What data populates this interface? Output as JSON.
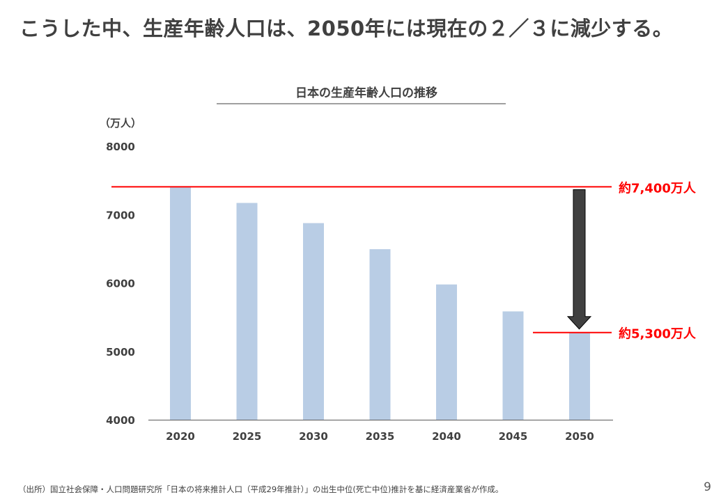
{
  "slide": {
    "title": "こうした中、生産年齢人口は、2050年には現在の２／３に減少する。",
    "note": "（出所）国立社会保障・人口問題研究所「日本の将来推計人口（平成29年推計）」の出生中位(死亡中位)推計を基に経済産業省が作成。",
    "page_number": "9"
  },
  "chart_data": {
    "type": "bar",
    "title": "日本の生産年齢人口の推移",
    "ylabel": "（万人）",
    "xlabel": "",
    "categories": [
      "2020",
      "2025",
      "2030",
      "2035",
      "2040",
      "2045",
      "2050"
    ],
    "values": [
      7406,
      7170,
      6875,
      6494,
      5978,
      5584,
      5275
    ],
    "ylim": [
      4000,
      8000
    ],
    "yticks": [
      "4000",
      "5000",
      "6000",
      "7000",
      "8000"
    ],
    "grid": false,
    "bar_color": "#B9CDE5",
    "annotations": [
      {
        "text": "約7,400万人",
        "value": 7406,
        "color": "#FF0000"
      },
      {
        "text": "約5,300万人",
        "value": 5275,
        "color": "#FF0000"
      }
    ],
    "arrow_color": "#404040"
  }
}
